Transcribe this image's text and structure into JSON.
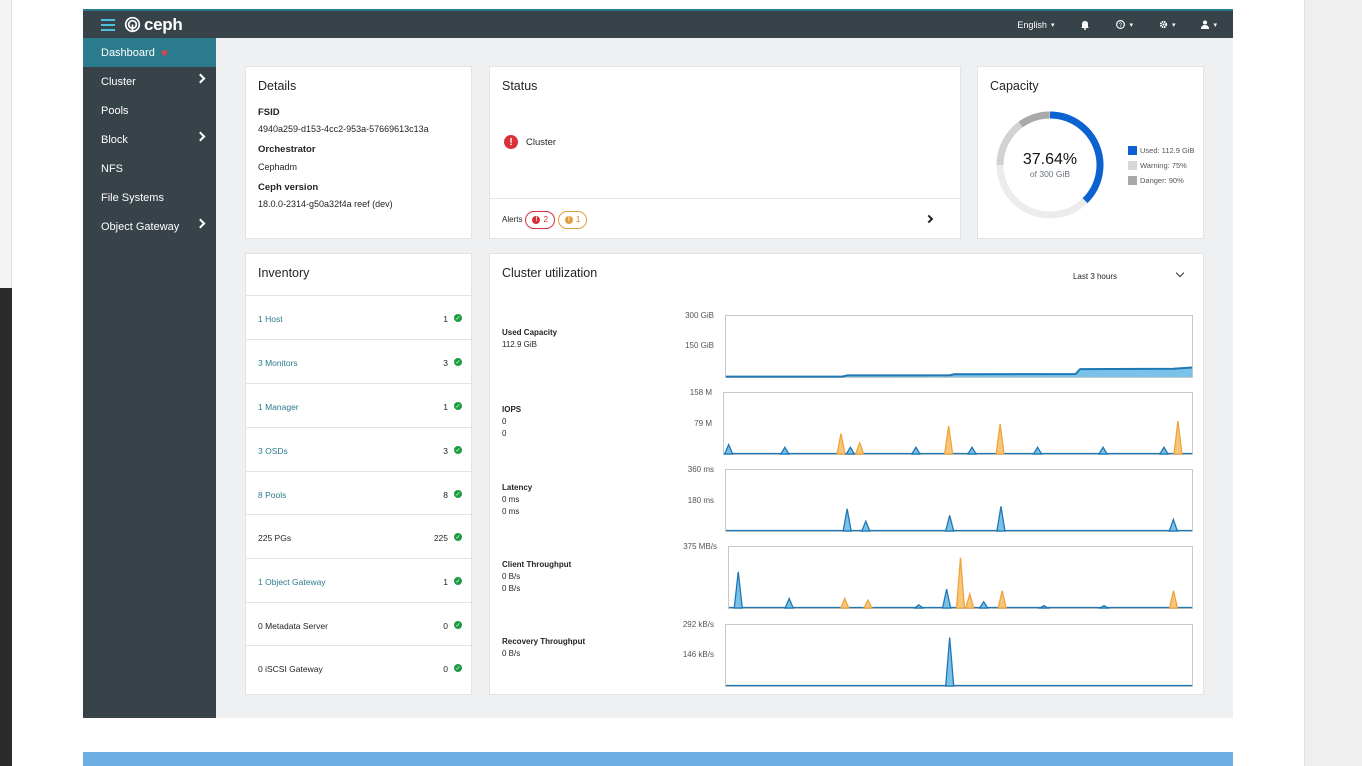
{
  "navbar": {
    "brand": "ceph",
    "language": "English",
    "notifications_icon": "bell-icon",
    "help_icon": "question-icon",
    "settings_icon": "gear-icon",
    "user_icon": "user-icon"
  },
  "sidebar": {
    "items": [
      {
        "label": "Dashboard",
        "active": true,
        "submenu": false
      },
      {
        "label": "Cluster",
        "active": false,
        "submenu": true
      },
      {
        "label": "Pools",
        "active": false,
        "submenu": false
      },
      {
        "label": "Block",
        "active": false,
        "submenu": true
      },
      {
        "label": "NFS",
        "active": false,
        "submenu": false
      },
      {
        "label": "File Systems",
        "active": false,
        "submenu": false
      },
      {
        "label": "Object Gateway",
        "active": false,
        "submenu": true
      }
    ]
  },
  "details": {
    "title": "Details",
    "fsid_label": "FSID",
    "fsid": "4940a259-d153-4cc2-953a-57669613c13a",
    "orchestrator_label": "Orchestrator",
    "orchestrator": "Cephadm",
    "version_label": "Ceph version",
    "version": "18.0.0-2314-g50a32f4a reef (dev)"
  },
  "status": {
    "title": "Status",
    "cluster_label": "Cluster",
    "alerts_label": "Alerts",
    "danger_count": "2",
    "warning_count": "1"
  },
  "capacity": {
    "title": "Capacity",
    "percent": "37.64%",
    "of_total": "of 300 GiB",
    "used_fraction": 0.3764,
    "legend": [
      {
        "label": "Used: 112.9 GiB",
        "color": "#0b62d0"
      },
      {
        "label": "Warning: 75%",
        "color": "#d7d7d7"
      },
      {
        "label": "Danger: 90%",
        "color": "#a8a8a8"
      }
    ]
  },
  "inventory": {
    "title": "Inventory",
    "rows": [
      {
        "name": "1 Host",
        "count": "1",
        "link": true
      },
      {
        "name": "3 Monitors",
        "count": "3",
        "link": true
      },
      {
        "name": "1 Manager",
        "count": "1",
        "link": true
      },
      {
        "name": "3 OSDs",
        "count": "3",
        "link": true
      },
      {
        "name": "8 Pools",
        "count": "8",
        "link": true
      },
      {
        "name": "225 PGs",
        "count": "225",
        "link": false
      },
      {
        "name": "1 Object Gateway",
        "count": "1",
        "link": true
      },
      {
        "name": "0 Metadata Server",
        "count": "0",
        "link": false
      },
      {
        "name": "0 iSCSI Gateway",
        "count": "0",
        "link": false
      }
    ]
  },
  "utilization": {
    "title": "Cluster utilization",
    "range": "Last 3 hours",
    "metrics": [
      {
        "label": "Used Capacity",
        "values": [
          "112.9 GiB"
        ],
        "ymax": "300 GiB",
        "ymid": "150 GiB"
      },
      {
        "label": "IOPS",
        "values": [
          "0",
          "0"
        ],
        "ymax": "158 M",
        "ymid": "79 M"
      },
      {
        "label": "Latency",
        "values": [
          "0 ms",
          "0 ms"
        ],
        "ymax": "360 ms",
        "ymid": "180 ms"
      },
      {
        "label": "Client Throughput",
        "values": [
          "0 B/s",
          "0 B/s"
        ],
        "ymax": "375 MB/s",
        "ymid": ""
      },
      {
        "label": "Recovery Throughput",
        "values": [
          "0 B/s"
        ],
        "ymax": "292 kB/s",
        "ymid": "146 kB/s"
      }
    ]
  },
  "chart_data": [
    {
      "type": "area",
      "x_range": [
        0,
        100
      ],
      "ylim": [
        0,
        300
      ],
      "series": [
        {
          "color": "#1f77b4",
          "points": [
            [
              0,
              2
            ],
            [
              25,
              2
            ],
            [
              26,
              8
            ],
            [
              48,
              9
            ],
            [
              49,
              14
            ],
            [
              75,
              15
            ],
            [
              76,
              40
            ],
            [
              96,
              42
            ],
            [
              100,
              48
            ]
          ]
        }
      ]
    },
    {
      "type": "area",
      "x_range": [
        0,
        100
      ],
      "ylim": [
        0,
        158
      ],
      "spikes": [
        {
          "x": 1,
          "value": 25,
          "series": 0
        },
        {
          "x": 13,
          "value": 18,
          "series": 0
        },
        {
          "x": 25,
          "value": 55,
          "series": 1
        },
        {
          "x": 27,
          "value": 18,
          "series": 0
        },
        {
          "x": 29,
          "value": 30,
          "series": 1
        },
        {
          "x": 41,
          "value": 18,
          "series": 0
        },
        {
          "x": 48,
          "value": 75,
          "series": 1
        },
        {
          "x": 53,
          "value": 18,
          "series": 0
        },
        {
          "x": 59,
          "value": 80,
          "series": 1
        },
        {
          "x": 67,
          "value": 18,
          "series": 0
        },
        {
          "x": 81,
          "value": 18,
          "series": 0
        },
        {
          "x": 94,
          "value": 18,
          "series": 0
        },
        {
          "x": 97,
          "value": 88,
          "series": 1
        }
      ],
      "series": [
        {
          "color": "#1f77b4"
        },
        {
          "color": "#f0a33c"
        }
      ]
    },
    {
      "type": "area",
      "x_range": [
        0,
        100
      ],
      "ylim": [
        0,
        360
      ],
      "spikes": [
        {
          "x": 26,
          "value": 135,
          "series": 0
        },
        {
          "x": 30,
          "value": 60,
          "series": 0
        },
        {
          "x": 48,
          "value": 95,
          "series": 0
        },
        {
          "x": 59,
          "value": 150,
          "series": 0
        },
        {
          "x": 96,
          "value": 70,
          "series": 0
        }
      ],
      "series": [
        {
          "color": "#1f77b4"
        }
      ]
    },
    {
      "type": "area",
      "x_range": [
        0,
        100
      ],
      "ylim": [
        0,
        375
      ],
      "spikes": [
        {
          "x": 2,
          "value": 230,
          "series": 0
        },
        {
          "x": 13,
          "value": 60,
          "series": 0
        },
        {
          "x": 25,
          "value": 60,
          "series": 1
        },
        {
          "x": 30,
          "value": 50,
          "series": 1
        },
        {
          "x": 41,
          "value": 20,
          "series": 0
        },
        {
          "x": 47,
          "value": 120,
          "series": 0
        },
        {
          "x": 50,
          "value": 320,
          "series": 1
        },
        {
          "x": 52,
          "value": 90,
          "series": 1
        },
        {
          "x": 55,
          "value": 40,
          "series": 0
        },
        {
          "x": 59,
          "value": 110,
          "series": 1
        },
        {
          "x": 68,
          "value": 15,
          "series": 0
        },
        {
          "x": 81,
          "value": 15,
          "series": 0
        },
        {
          "x": 96,
          "value": 110,
          "series": 1
        }
      ],
      "series": [
        {
          "color": "#1f77b4"
        },
        {
          "color": "#f0a33c"
        }
      ]
    },
    {
      "type": "area",
      "x_range": [
        0,
        100
      ],
      "ylim": [
        0,
        292
      ],
      "spikes": [
        {
          "x": 48,
          "value": 240,
          "series": 0
        }
      ],
      "series": [
        {
          "color": "#1f77b4"
        }
      ]
    }
  ]
}
